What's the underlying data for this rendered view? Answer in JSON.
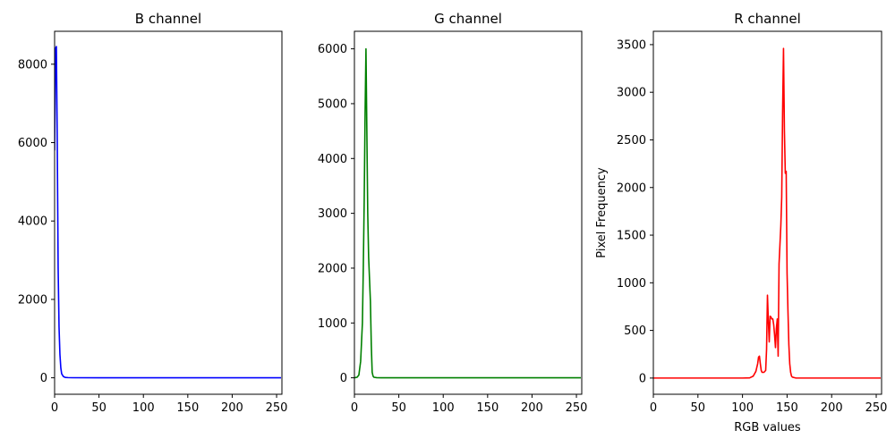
{
  "chart_data": [
    {
      "type": "line",
      "title": "B channel",
      "xlabel": "",
      "ylabel": "",
      "xlim": [
        0,
        256
      ],
      "ylim": [
        -420,
        8840
      ],
      "xticks": [
        0,
        50,
        100,
        150,
        200,
        250
      ],
      "yticks": [
        0,
        2000,
        4000,
        6000,
        8000
      ],
      "series": [
        {
          "color": "#0000ff",
          "x": [
            0,
            1,
            2,
            3,
            4,
            5,
            6,
            7,
            8,
            10,
            12,
            15,
            20,
            50,
            100,
            150,
            200,
            255
          ],
          "y": [
            5800,
            8400,
            8450,
            6000,
            2800,
            1300,
            600,
            250,
            100,
            30,
            10,
            5,
            2,
            0,
            0,
            0,
            0,
            0
          ]
        }
      ]
    },
    {
      "type": "line",
      "title": "G channel",
      "xlabel": "",
      "ylabel": "",
      "xlim": [
        0,
        256
      ],
      "ylim": [
        -300,
        6320
      ],
      "xticks": [
        0,
        50,
        100,
        150,
        200,
        250
      ],
      "yticks": [
        0,
        1000,
        2000,
        3000,
        4000,
        5000,
        6000
      ],
      "series": [
        {
          "color": "#008000",
          "x": [
            0,
            3,
            5,
            7,
            9,
            10,
            11,
            12,
            13,
            14,
            15,
            16,
            17,
            18,
            19,
            20,
            21,
            22,
            25,
            30,
            50,
            100,
            150,
            200,
            255
          ],
          "y": [
            0,
            10,
            50,
            300,
            1000,
            2000,
            3200,
            4800,
            6000,
            4500,
            3000,
            2200,
            1800,
            1400,
            600,
            100,
            30,
            10,
            3,
            0,
            0,
            0,
            0,
            0,
            0
          ]
        }
      ]
    },
    {
      "type": "line",
      "title": "R channel",
      "xlabel": "RGB values",
      "ylabel": "Pixel Frequency",
      "xlim": [
        0,
        256
      ],
      "ylim": [
        -170,
        3640
      ],
      "xticks": [
        0,
        50,
        100,
        150,
        200,
        250
      ],
      "yticks": [
        0,
        500,
        1000,
        1500,
        2000,
        2500,
        3000,
        3500
      ],
      "series": [
        {
          "color": "#ff0000",
          "x": [
            0,
            100,
            108,
            112,
            115,
            117,
            118,
            119,
            120,
            121,
            122,
            124,
            126,
            127,
            128,
            129,
            130,
            131,
            132,
            133,
            134,
            135,
            136,
            137,
            138,
            139,
            140,
            141,
            142,
            143,
            144,
            145,
            146,
            147,
            148,
            149,
            150,
            151,
            152,
            153,
            154,
            155,
            156,
            158,
            160,
            170,
            200,
            255
          ],
          "y": [
            0,
            0,
            2,
            20,
            70,
            150,
            220,
            230,
            150,
            80,
            60,
            60,
            80,
            300,
            870,
            600,
            380,
            650,
            640,
            620,
            620,
            560,
            450,
            320,
            520,
            620,
            230,
            1200,
            1400,
            1600,
            1900,
            2800,
            3460,
            2600,
            2150,
            2170,
            1100,
            700,
            350,
            150,
            60,
            20,
            10,
            5,
            0,
            0,
            0,
            0
          ]
        }
      ]
    }
  ]
}
